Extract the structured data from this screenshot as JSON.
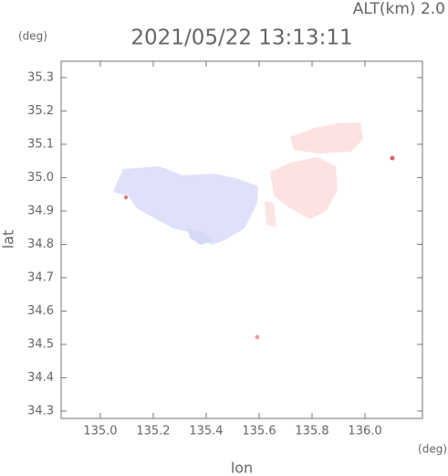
{
  "chart_data": {
    "type": "map",
    "altitude_label": "ALT(km)  2.0",
    "title": "2021/05/22 13:13:11",
    "y_unit": "(deg)",
    "x_unit": "(deg)",
    "ylabel": "lat",
    "xlabel": "lon",
    "xlim": [
      134.852,
      136.217
    ],
    "ylim": [
      34.278,
      35.349
    ],
    "xticks": [
      {
        "value": 135,
        "label": "135.0"
      },
      135.2,
      135.4,
      135.6,
      135.8,
      {
        "value": 136,
        "label": "136.0"
      }
    ],
    "yticks": [
      34.3,
      34.4,
      34.5,
      34.6,
      34.7,
      34.8,
      34.9,
      {
        "value": 35,
        "label": "35.0"
      },
      35.1,
      35.2,
      35.3
    ]
  }
}
